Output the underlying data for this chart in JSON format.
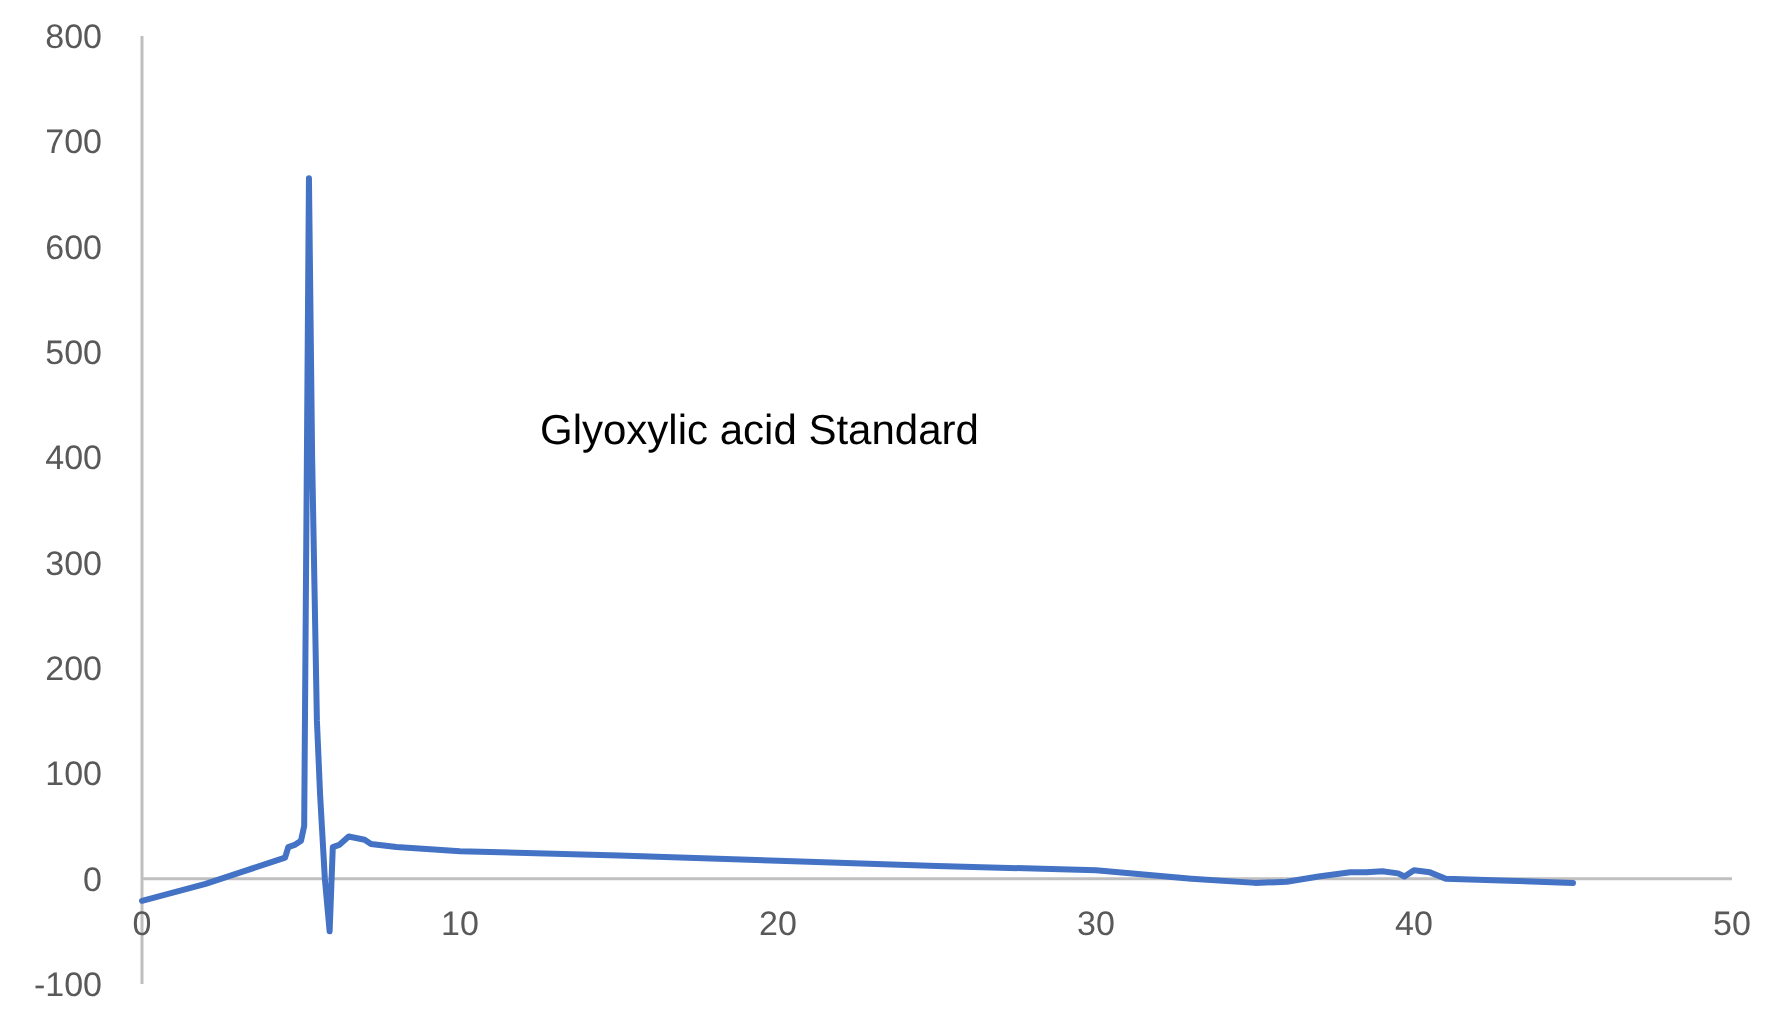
{
  "chart_data": {
    "type": "line",
    "annotations": [
      "Glyoxylic acid Standard"
    ],
    "x": [
      0,
      1,
      2,
      2.5,
      3,
      4,
      4.5,
      4.6,
      4.8,
      5.0,
      5.1,
      5.25,
      5.35,
      5.5,
      5.6,
      5.75,
      5.9,
      6.0,
      6.2,
      6.5,
      7.0,
      7.2,
      8,
      10,
      15,
      20,
      25,
      30,
      33,
      35,
      36,
      37,
      38,
      38.5,
      39,
      39.5,
      39.7,
      40,
      40.5,
      41,
      43,
      45
    ],
    "series": [
      {
        "color": "#4472c4",
        "values": [
          -21,
          -13,
          -5,
          0,
          5,
          15,
          20,
          30,
          32,
          36,
          50,
          665,
          400,
          150,
          80,
          0,
          -50,
          30,
          32,
          40,
          37,
          33,
          30,
          26,
          22,
          17,
          12,
          8,
          0,
          -4,
          -3,
          2,
          6,
          6,
          7,
          5,
          2,
          8,
          6,
          0,
          -2,
          -4
        ]
      }
    ],
    "xlim": [
      0,
      50
    ],
    "xticks": [
      0,
      10,
      20,
      30,
      40,
      50
    ],
    "ylim": [
      -100,
      800
    ],
    "yticks": [
      -100,
      0,
      100,
      200,
      300,
      400,
      500,
      600,
      700,
      800
    ],
    "grid": false
  }
}
